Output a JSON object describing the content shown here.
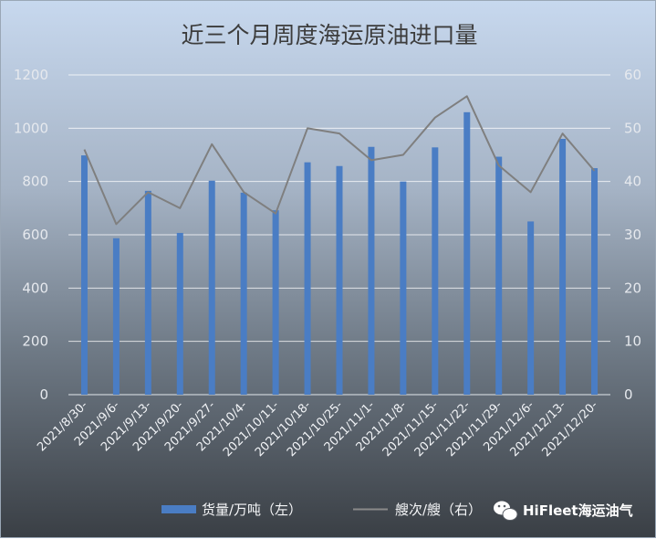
{
  "chart_data": {
    "type": "bar",
    "title": "近三个月周度海运原油进口量",
    "categories": [
      "2021/8/30-",
      "2021/9/6-",
      "2021/9/13-",
      "2021/9/20-",
      "2021/9/27-",
      "2021/10/4-",
      "2021/10/11-",
      "2021/10/18-",
      "2021/10/25-",
      "2021/11/1-",
      "2021/11/8-",
      "2021/11/15-",
      "2021/11/22-",
      "2021/11/29-",
      "2021/12/6-",
      "2021/12/13-",
      "2021/12/20-"
    ],
    "series": [
      {
        "name": "货量/万吨（左）",
        "type": "bar",
        "axis": "left",
        "color": "#4a7dc4",
        "values": [
          898,
          587,
          765,
          607,
          803,
          758,
          692,
          872,
          858,
          930,
          800,
          928,
          1060,
          893,
          650,
          960,
          850
        ]
      },
      {
        "name": "艘次/艘（右）",
        "type": "line",
        "axis": "right",
        "color": "#7f7f7f",
        "values": [
          46,
          32,
          38,
          35,
          47,
          38,
          34,
          50,
          49,
          44,
          45,
          52,
          56,
          43,
          38,
          49,
          42
        ]
      }
    ],
    "y_left": {
      "range": [
        0,
        1200
      ],
      "ticks": [
        "0",
        "200",
        "400",
        "600",
        "800",
        "1000",
        "1200"
      ]
    },
    "y_right": {
      "range": [
        0,
        60
      ],
      "ticks": [
        "0",
        "10",
        "20",
        "30",
        "40",
        "50",
        "60"
      ]
    },
    "grid": true,
    "legend_position": "bottom"
  },
  "watermark": {
    "text": "HiFleet海运油气",
    "icon": "wechat-icon"
  }
}
